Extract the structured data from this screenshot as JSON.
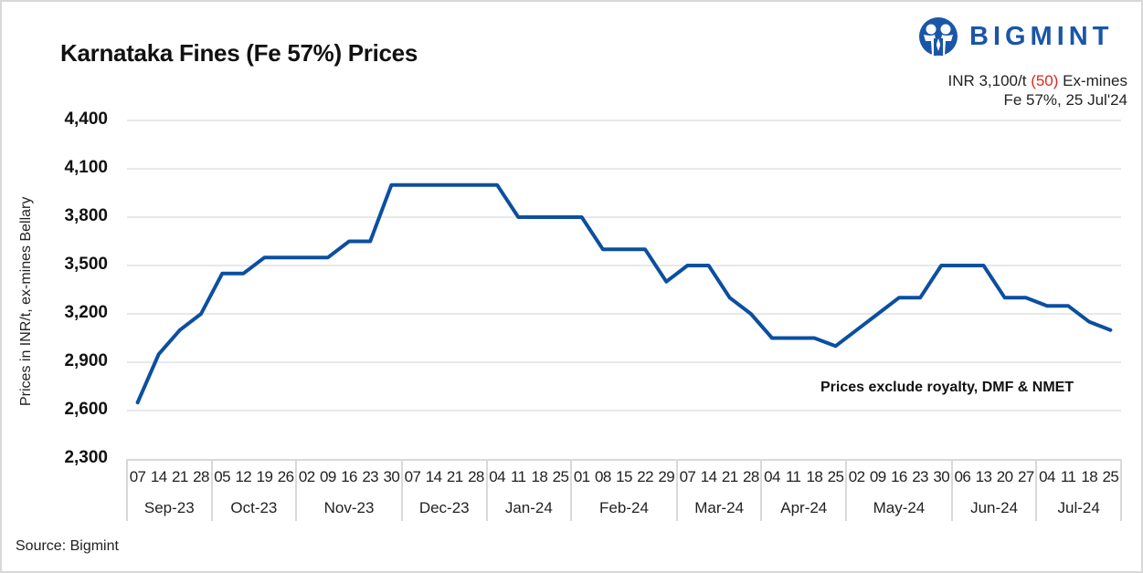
{
  "header": {
    "title": "Karnataka Fines (Fe 57%) Prices",
    "logo_text": "BIGMINT",
    "logo_icon": "bigmint-people-icon",
    "summary_prefix": "INR 3,100/t ",
    "summary_change": "(50)",
    "summary_suffix": " Ex-mines",
    "summary_line2": "Fe 57%, 25 Jul'24"
  },
  "note": "Prices exclude royalty, DMF & NMET",
  "source": "Source: Bigmint",
  "colors": {
    "line": "#0b4fa0",
    "brand": "#1a56a8",
    "change_negative": "#e0281e",
    "grid": "#e8e8e8",
    "frame": "#d9d9d9"
  },
  "chart_data": {
    "type": "line",
    "title": "Karnataka Fines (Fe 57%) Prices",
    "xlabel": "",
    "ylabel": "Prices in INR/t, ex-mines Bellary",
    "ylim": [
      2300,
      4400
    ],
    "yticks": [
      "4,400",
      "4,100",
      "3,800",
      "3,500",
      "3,200",
      "2,900",
      "2,600",
      "2,300"
    ],
    "ytick_values": [
      4400,
      4100,
      3800,
      3500,
      3200,
      2900,
      2600,
      2300
    ],
    "grid": true,
    "legend": null,
    "annotation": "Prices exclude royalty, DMF & NMET",
    "months": [
      {
        "label": "Sep-23",
        "days": [
          "07",
          "14",
          "21",
          "28"
        ]
      },
      {
        "label": "Oct-23",
        "days": [
          "05",
          "12",
          "19",
          "26"
        ]
      },
      {
        "label": "Nov-23",
        "days": [
          "02",
          "09",
          "16",
          "23",
          "30"
        ]
      },
      {
        "label": "Dec-23",
        "days": [
          "07",
          "14",
          "21",
          "28"
        ]
      },
      {
        "label": "Jan-24",
        "days": [
          "04",
          "11",
          "18",
          "25"
        ]
      },
      {
        "label": "Feb-24",
        "days": [
          "01",
          "08",
          "15",
          "22",
          "29"
        ]
      },
      {
        "label": "Mar-24",
        "days": [
          "07",
          "14",
          "21",
          "28"
        ]
      },
      {
        "label": "Apr-24",
        "days": [
          "04",
          "11",
          "18",
          "25"
        ]
      },
      {
        "label": "May-24",
        "days": [
          "02",
          "09",
          "16",
          "23",
          "30"
        ]
      },
      {
        "label": "Jun-24",
        "days": [
          "06",
          "13",
          "20",
          "27"
        ]
      },
      {
        "label": "Jul-24",
        "days": [
          "04",
          "11",
          "18",
          "25"
        ]
      }
    ],
    "series": [
      {
        "name": "Karnataka Fines Fe 57% (INR/t)",
        "values": [
          2650,
          2950,
          3100,
          3200,
          3450,
          3450,
          3550,
          3550,
          3550,
          3550,
          3650,
          3650,
          4000,
          4000,
          4000,
          4000,
          4000,
          4000,
          3800,
          3800,
          3800,
          3800,
          3600,
          3600,
          3600,
          3400,
          3500,
          3500,
          3300,
          3200,
          3050,
          3050,
          3050,
          3000,
          3100,
          3200,
          3300,
          3300,
          3500,
          3500,
          3500,
          3300,
          3300,
          3250,
          3250,
          3150,
          3100
        ]
      }
    ]
  }
}
